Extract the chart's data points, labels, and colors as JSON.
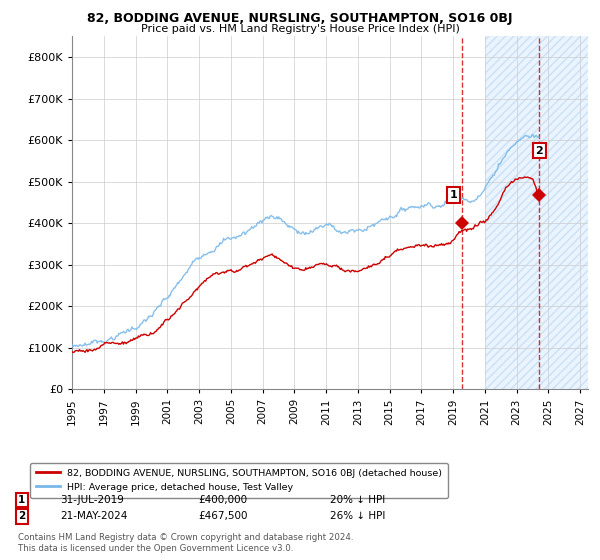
{
  "title": "82, BODDING AVENUE, NURSLING, SOUTHAMPTON, SO16 0BJ",
  "subtitle": "Price paid vs. HM Land Registry's House Price Index (HPI)",
  "xlim_start": 1995.0,
  "xlim_end": 2027.5,
  "ylim": [
    0,
    850000
  ],
  "yticks": [
    0,
    100000,
    200000,
    300000,
    400000,
    500000,
    600000,
    700000,
    800000
  ],
  "ytick_labels": [
    "£0",
    "£100K",
    "£200K",
    "£300K",
    "£400K",
    "£500K",
    "£600K",
    "£700K",
    "£800K"
  ],
  "hpi_color": "#7ab8e8",
  "price_color": "#cc0000",
  "marker_color": "#cc0000",
  "legend_label_red": "82, BODDING AVENUE, NURSLING, SOUTHAMPTON, SO16 0BJ (detached house)",
  "legend_label_blue": "HPI: Average price, detached house, Test Valley",
  "footer": "Contains HM Land Registry data © Crown copyright and database right 2024.\nThis data is licensed under the Open Government Licence v3.0.",
  "sale1_date_x": 2019.58,
  "sale1_price": 400000,
  "sale2_date_x": 2024.39,
  "sale2_price": 467500,
  "annotation1": [
    "1",
    "31-JUL-2019",
    "£400,000",
    "20% ↓ HPI"
  ],
  "annotation2": [
    "2",
    "21-MAY-2024",
    "£467,500",
    "26% ↓ HPI"
  ],
  "shade_start": 2021.0,
  "shade_end": 2027.5,
  "xtick_years": [
    1995,
    1997,
    1999,
    2001,
    2003,
    2005,
    2007,
    2009,
    2011,
    2013,
    2015,
    2017,
    2019,
    2021,
    2023,
    2025,
    2027
  ],
  "hpi_keypoints": [
    [
      1995.0,
      105000
    ],
    [
      1995.5,
      107000
    ],
    [
      1996.0,
      112000
    ],
    [
      1996.5,
      116000
    ],
    [
      1997.0,
      122000
    ],
    [
      1997.5,
      128000
    ],
    [
      1998.0,
      136000
    ],
    [
      1998.5,
      143000
    ],
    [
      1999.0,
      152000
    ],
    [
      1999.5,
      163000
    ],
    [
      2000.0,
      176000
    ],
    [
      2000.5,
      192000
    ],
    [
      2001.0,
      210000
    ],
    [
      2001.5,
      228000
    ],
    [
      2002.0,
      252000
    ],
    [
      2002.5,
      275000
    ],
    [
      2003.0,
      298000
    ],
    [
      2003.5,
      318000
    ],
    [
      2004.0,
      335000
    ],
    [
      2004.5,
      348000
    ],
    [
      2005.0,
      355000
    ],
    [
      2005.5,
      358000
    ],
    [
      2006.0,
      368000
    ],
    [
      2006.5,
      382000
    ],
    [
      2007.0,
      398000
    ],
    [
      2007.5,
      408000
    ],
    [
      2008.0,
      405000
    ],
    [
      2008.5,
      388000
    ],
    [
      2009.0,
      368000
    ],
    [
      2009.5,
      358000
    ],
    [
      2010.0,
      362000
    ],
    [
      2010.5,
      370000
    ],
    [
      2011.0,
      372000
    ],
    [
      2011.5,
      368000
    ],
    [
      2012.0,
      362000
    ],
    [
      2012.5,
      358000
    ],
    [
      2013.0,
      358000
    ],
    [
      2013.5,
      362000
    ],
    [
      2014.0,
      372000
    ],
    [
      2014.5,
      385000
    ],
    [
      2015.0,
      395000
    ],
    [
      2015.5,
      405000
    ],
    [
      2016.0,
      415000
    ],
    [
      2016.5,
      422000
    ],
    [
      2017.0,
      428000
    ],
    [
      2017.5,
      432000
    ],
    [
      2018.0,
      435000
    ],
    [
      2018.5,
      438000
    ],
    [
      2019.0,
      442000
    ],
    [
      2019.5,
      448000
    ],
    [
      2020.0,
      452000
    ],
    [
      2020.5,
      462000
    ],
    [
      2021.0,
      480000
    ],
    [
      2021.5,
      510000
    ],
    [
      2022.0,
      548000
    ],
    [
      2022.5,
      580000
    ],
    [
      2023.0,
      598000
    ],
    [
      2023.5,
      608000
    ],
    [
      2024.0,
      610000
    ],
    [
      2024.4,
      608000
    ]
  ],
  "price_keypoints": [
    [
      1995.0,
      90000
    ],
    [
      1995.5,
      92000
    ],
    [
      1996.0,
      95000
    ],
    [
      1996.5,
      98000
    ],
    [
      1997.0,
      103000
    ],
    [
      1997.5,
      108000
    ],
    [
      1998.0,
      114000
    ],
    [
      1998.5,
      120000
    ],
    [
      1999.0,
      128000
    ],
    [
      1999.5,
      138000
    ],
    [
      2000.0,
      150000
    ],
    [
      2000.5,
      163000
    ],
    [
      2001.0,
      178000
    ],
    [
      2001.5,
      195000
    ],
    [
      2002.0,
      215000
    ],
    [
      2002.5,
      235000
    ],
    [
      2003.0,
      255000
    ],
    [
      2003.5,
      270000
    ],
    [
      2004.0,
      282000
    ],
    [
      2004.5,
      292000
    ],
    [
      2005.0,
      298000
    ],
    [
      2005.5,
      300000
    ],
    [
      2006.0,
      308000
    ],
    [
      2006.5,
      318000
    ],
    [
      2007.0,
      330000
    ],
    [
      2007.5,
      338000
    ],
    [
      2008.0,
      330000
    ],
    [
      2008.5,
      315000
    ],
    [
      2009.0,
      300000
    ],
    [
      2009.5,
      292000
    ],
    [
      2010.0,
      296000
    ],
    [
      2010.5,
      302000
    ],
    [
      2011.0,
      305000
    ],
    [
      2011.5,
      300000
    ],
    [
      2012.0,
      295000
    ],
    [
      2012.5,
      292000
    ],
    [
      2013.0,
      292000
    ],
    [
      2013.5,
      298000
    ],
    [
      2014.0,
      308000
    ],
    [
      2014.5,
      320000
    ],
    [
      2015.0,
      330000
    ],
    [
      2015.5,
      340000
    ],
    [
      2016.0,
      348000
    ],
    [
      2016.5,
      354000
    ],
    [
      2017.0,
      360000
    ],
    [
      2017.5,
      364000
    ],
    [
      2018.0,
      368000
    ],
    [
      2018.5,
      372000
    ],
    [
      2019.0,
      378000
    ],
    [
      2019.58,
      400000
    ],
    [
      2020.0,
      398000
    ],
    [
      2020.5,
      405000
    ],
    [
      2021.0,
      418000
    ],
    [
      2021.5,
      438000
    ],
    [
      2022.0,
      468000
    ],
    [
      2022.5,
      495000
    ],
    [
      2023.0,
      508000
    ],
    [
      2023.5,
      515000
    ],
    [
      2024.0,
      512000
    ],
    [
      2024.39,
      467500
    ]
  ]
}
